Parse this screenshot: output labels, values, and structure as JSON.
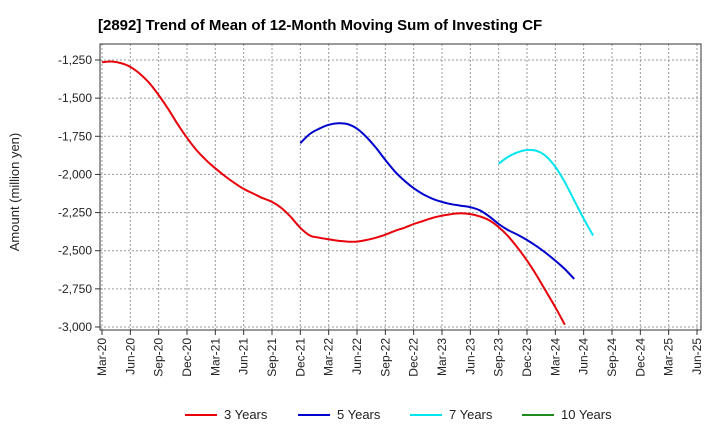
{
  "chart_data": {
    "type": "line",
    "title": "[2892]  Trend of Mean of 12-Month Moving Sum of Investing CF",
    "xlabel": "",
    "ylabel": "Amount (million yen)",
    "ylim": [
      -3000,
      -1250
    ],
    "yticks": [
      -1250,
      -1500,
      -1750,
      -2000,
      -2250,
      -2500,
      -2750,
      -3000
    ],
    "ytick_labels": [
      "-1,250",
      "-1,500",
      "-1,750",
      "-2,000",
      "-2,250",
      "-2,500",
      "-2,750",
      "-3,000"
    ],
    "x_tick_labels": [
      "Mar-20",
      "Jun-20",
      "Sep-20",
      "Dec-20",
      "Mar-21",
      "Jun-21",
      "Sep-21",
      "Dec-21",
      "Mar-22",
      "Jun-22",
      "Sep-22",
      "Dec-22",
      "Mar-23",
      "Jun-23",
      "Sep-23",
      "Dec-23",
      "Mar-24",
      "Jun-24",
      "Sep-24",
      "Dec-24",
      "Mar-25",
      "Jun-25"
    ],
    "grid": true,
    "legend_position": "bottom",
    "series": [
      {
        "name": "3 Years",
        "color": "#e8000b",
        "start_index": 0,
        "values": [
          -1265,
          -1260,
          -1270,
          -1295,
          -1340,
          -1400,
          -1480,
          -1570,
          -1670,
          -1760,
          -1840,
          -1905,
          -1960,
          -2010,
          -2055,
          -2095,
          -2125,
          -2155,
          -2180,
          -2220,
          -2280,
          -2350,
          -2400,
          -2415,
          -2425,
          -2435,
          -2440,
          -2440,
          -2430,
          -2415,
          -2395,
          -2370,
          -2350,
          -2325,
          -2305,
          -2285,
          -2270,
          -2260,
          -2255,
          -2260,
          -2275,
          -2300,
          -2345,
          -2405,
          -2480,
          -2565,
          -2660,
          -2765,
          -2870,
          -2985
        ]
      },
      {
        "name": "5 Years",
        "color": "#0000cd",
        "start_index": 21,
        "values": [
          -1795,
          -1735,
          -1700,
          -1675,
          -1665,
          -1670,
          -1700,
          -1755,
          -1825,
          -1905,
          -1980,
          -2040,
          -2090,
          -2130,
          -2160,
          -2180,
          -2195,
          -2205,
          -2215,
          -2235,
          -2275,
          -2325,
          -2365,
          -2395,
          -2430,
          -2470,
          -2515,
          -2565,
          -2620,
          -2685
        ]
      },
      {
        "name": "7 Years",
        "color": "#00e5ee",
        "start_index": 42,
        "values": [
          -1930,
          -1885,
          -1855,
          -1840,
          -1845,
          -1880,
          -1950,
          -2050,
          -2170,
          -2290,
          -2400
        ]
      },
      {
        "name": "10 Years",
        "color": "#1e8a1e",
        "start_index": 0,
        "values": []
      }
    ]
  }
}
